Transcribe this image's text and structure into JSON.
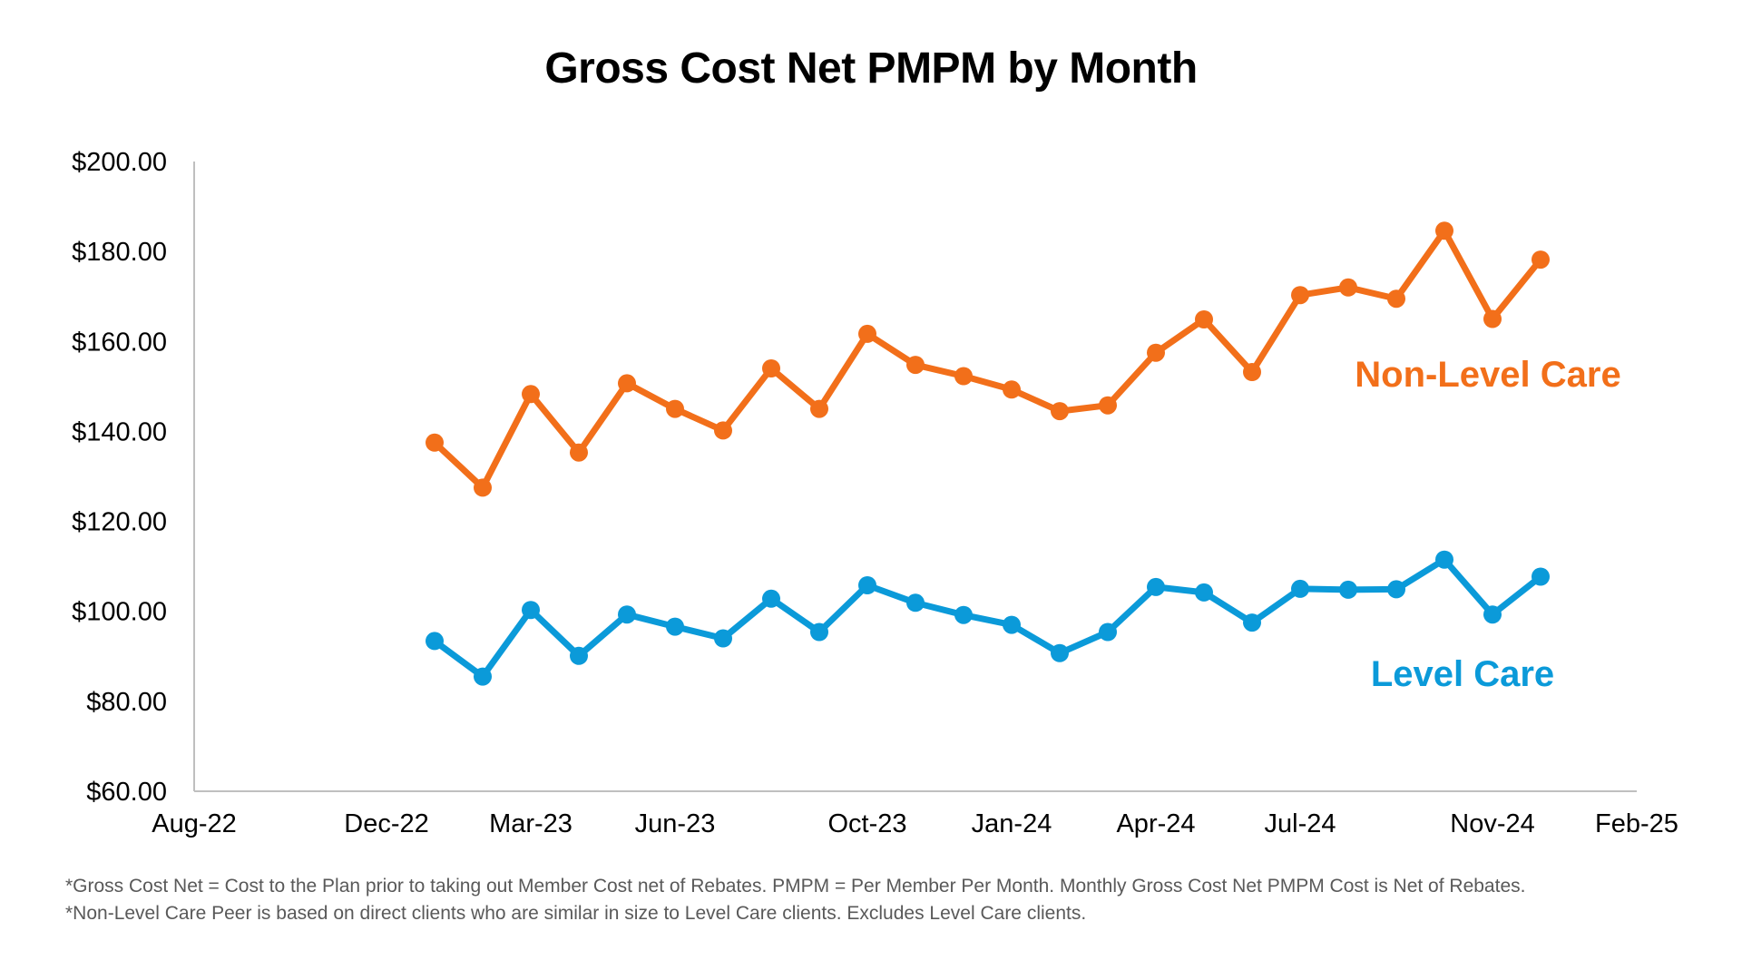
{
  "chart_data": {
    "type": "line",
    "title": "Gross Cost Net PMPM by Month",
    "xlabel": "",
    "ylabel": "",
    "x_ticks": [
      "Aug-22",
      "Dec-22",
      "Mar-23",
      "Jun-23",
      "Oct-23",
      "Jan-24",
      "Apr-24",
      "Jul-24",
      "Nov-24",
      "Feb-25"
    ],
    "y_ticks": [
      "$60.00",
      "$80.00",
      "$100.00",
      "$120.00",
      "$140.00",
      "$160.00",
      "$180.00",
      "$200.00"
    ],
    "ylim": [
      60,
      200
    ],
    "xlim": [
      "Aug-22",
      "Feb-25"
    ],
    "x": [
      "Jan-23",
      "Feb-23",
      "Mar-23",
      "Apr-23",
      "May-23",
      "Jun-23",
      "Jul-23",
      "Aug-23",
      "Sep-23",
      "Oct-23",
      "Nov-23",
      "Dec-23",
      "Jan-24",
      "Feb-24",
      "Mar-24",
      "Apr-24",
      "May-24",
      "Jun-24",
      "Jul-24",
      "Aug-24",
      "Sep-24",
      "Oct-24",
      "Nov-24",
      "Dec-24"
    ],
    "grid": false,
    "series": [
      {
        "name": "Non-Level Care",
        "color": "#F26F1A",
        "values": [
          137.5,
          127.5,
          148.3,
          135.3,
          150.7,
          145.0,
          140.2,
          154.0,
          145.0,
          161.7,
          154.8,
          152.3,
          149.3,
          144.5,
          145.8,
          157.5,
          164.9,
          153.2,
          170.3,
          172.0,
          169.5,
          184.6,
          165.0,
          178.2
        ]
      },
      {
        "name": "Level Care",
        "color": "#0B9AD9",
        "values": [
          93.4,
          85.5,
          100.3,
          90.1,
          99.3,
          96.6,
          94.0,
          102.8,
          95.4,
          105.8,
          101.9,
          99.2,
          97.0,
          90.7,
          95.4,
          105.4,
          104.2,
          97.5,
          105.0,
          104.8,
          104.9,
          111.5,
          99.3,
          107.7
        ]
      }
    ],
    "axis_color": "#BFBFBF",
    "tick_label_color": "#000000"
  },
  "footnotes": [
    "*Gross Cost Net = Cost to the Plan prior to taking out Member Cost net of Rebates. PMPM = Per Member Per Month. Monthly Gross Cost Net PMPM Cost is Net of Rebates.",
    "*Non-Level Care Peer is based on direct clients who are similar in size to Level Care clients. Excludes Level Care clients."
  ]
}
